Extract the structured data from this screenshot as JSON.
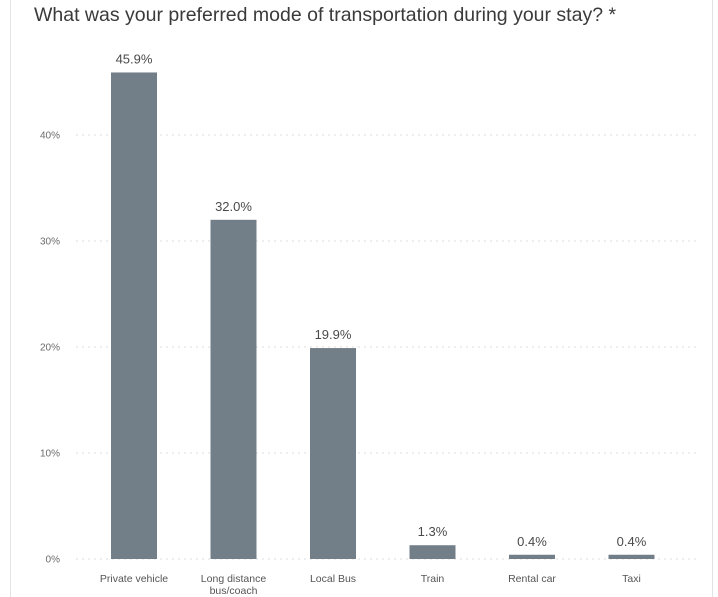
{
  "question": {
    "title": "What was your preferred mode of transportation during your stay? *"
  },
  "colors": {
    "bar": "#737f88"
  },
  "chart_data": {
    "type": "bar",
    "title": "What was your preferred mode of transportation during your stay? *",
    "xlabel": "",
    "ylabel": "",
    "ylim": [
      0,
      48
    ],
    "grid": true,
    "yticks": [
      {
        "value": 0,
        "label": "0%"
      },
      {
        "value": 10,
        "label": "10%"
      },
      {
        "value": 20,
        "label": "20%"
      },
      {
        "value": 30,
        "label": "30%"
      },
      {
        "value": 40,
        "label": "40%"
      }
    ],
    "categories": [
      [
        "Private vehicle"
      ],
      [
        "Long distance",
        "bus/coach"
      ],
      [
        "Local Bus"
      ],
      [
        "Train"
      ],
      [
        "Rental car"
      ],
      [
        "Taxi"
      ]
    ],
    "values": [
      45.9,
      32.0,
      19.9,
      1.3,
      0.4,
      0.4
    ],
    "value_labels": [
      "45.9%",
      "32.0%",
      "19.9%",
      "1.3%",
      "0.4%",
      "0.4%"
    ]
  }
}
